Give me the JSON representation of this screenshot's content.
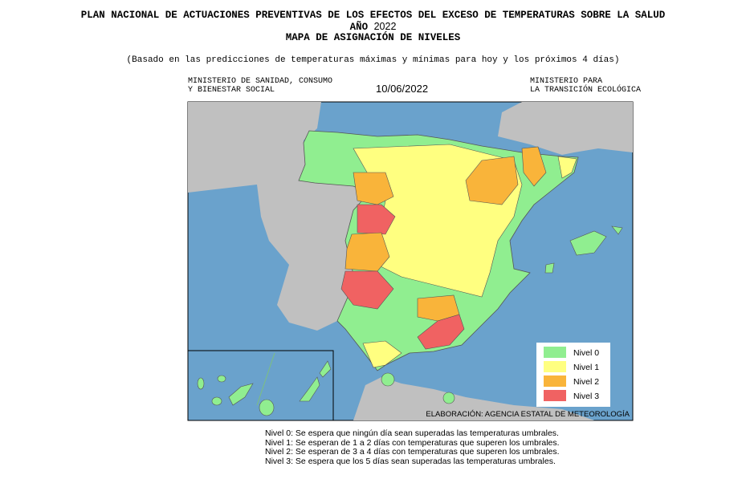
{
  "header": {
    "title": "PLAN NACIONAL DE ACTUACIONES PREVENTIVAS DE LOS EFECTOS DEL EXCESO DE TEMPERATURAS SOBRE LA SALUD",
    "year_label": "AÑO",
    "year": "2022",
    "map_title": "MAPA DE ASIGNACIÓN DE NIVELES",
    "subtitle": "(Basado en las predicciones de temperaturas máximas y mínimas para hoy y los próximos 4 días)",
    "left_org": [
      "MINISTERIO DE SANIDAD, CONSUMO",
      "Y BIENESTAR SOCIAL"
    ],
    "date": "10/06/2022",
    "right_org": [
      "MINISTERIO PARA",
      "LA TRANSICIÓN ECOLÓGICA"
    ]
  },
  "legend": [
    {
      "label": "Nivel 0",
      "color": "#90ee90"
    },
    {
      "label": "Nivel 1",
      "color": "#ffff80"
    },
    {
      "label": "Nivel 2",
      "color": "#f9b43a"
    },
    {
      "label": "Nivel 3",
      "color": "#f06262"
    }
  ],
  "credit": "ELABORACIÓN: AGENCIA ESTATAL DE METEOROLOGÍA",
  "notes": [
    "Nivel 0: Se espera que ningún día sean superadas las temperaturas umbrales.",
    "Nivel 1: Se esperan de 1 a 2 días con temperaturas que superen los umbrales.",
    "Nivel 2: Se esperan de 3 a 4 días con temperaturas que superen los umbrales.",
    "Nivel 3: Se espera que los 5 días sean superadas las temperaturas umbrales."
  ]
}
